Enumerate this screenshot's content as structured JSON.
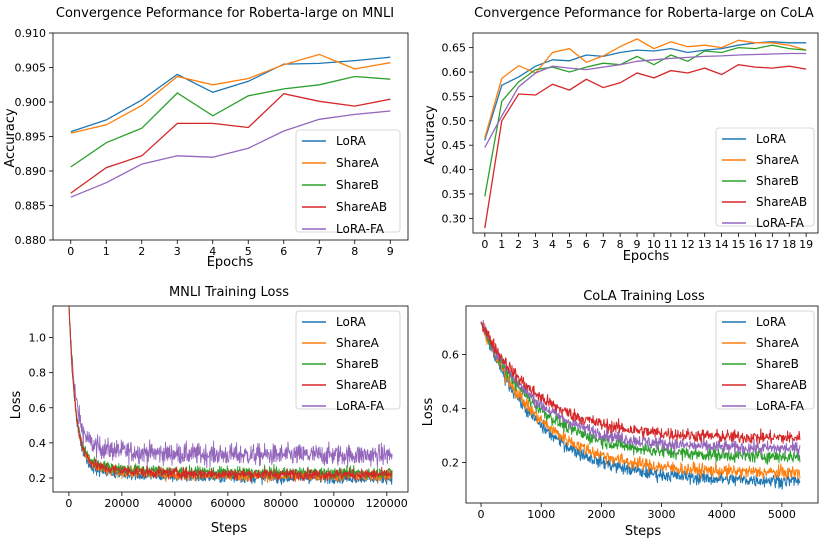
{
  "series_colors": {
    "LoRA": "#1f77b4",
    "ShareA": "#ff7f0e",
    "ShareB": "#2ca02c",
    "ShareAB": "#d62728",
    "LoRA-FA": "#9467bd"
  },
  "chart_data": [
    {
      "type": "line",
      "title": "Convergence Peformance for Roberta-large on MNLI",
      "xlabel": "Epochs",
      "ylabel": "Accuracy",
      "xlim": [
        -0.5,
        9.5
      ],
      "ylim": [
        0.88,
        0.91
      ],
      "xticks": [
        "0",
        "1",
        "2",
        "3",
        "4",
        "5",
        "6",
        "7",
        "8",
        "9"
      ],
      "yticks": [
        "0.880",
        "0.885",
        "0.890",
        "0.895",
        "0.900",
        "0.905",
        "0.910"
      ],
      "legend_position": "lower-right",
      "x": [
        0,
        1,
        2,
        3,
        4,
        5,
        6,
        7,
        8,
        9
      ],
      "series": [
        {
          "name": "LoRA",
          "values": [
            0.8957,
            0.8974,
            0.9003,
            0.904,
            0.9014,
            0.903,
            0.9055,
            0.9056,
            0.906,
            0.9065
          ]
        },
        {
          "name": "ShareA",
          "values": [
            0.8955,
            0.8967,
            0.8995,
            0.9037,
            0.9025,
            0.9034,
            0.9054,
            0.9069,
            0.9048,
            0.9057
          ]
        },
        {
          "name": "ShareB",
          "values": [
            0.8906,
            0.8941,
            0.8962,
            0.9013,
            0.898,
            0.9009,
            0.9019,
            0.9025,
            0.9037,
            0.9033
          ]
        },
        {
          "name": "ShareAB",
          "values": [
            0.8868,
            0.8905,
            0.8922,
            0.8969,
            0.8969,
            0.8963,
            0.9012,
            0.9001,
            0.8994,
            0.9004
          ]
        },
        {
          "name": "LoRA-FA",
          "values": [
            0.8862,
            0.8883,
            0.891,
            0.8922,
            0.892,
            0.8933,
            0.8958,
            0.8975,
            0.8982,
            0.8987
          ]
        }
      ]
    },
    {
      "type": "line",
      "title": "Convergence Peformance for Roberta-large on CoLA",
      "xlabel": "Epochs",
      "ylabel": "Accuracy",
      "xlim": [
        -0.7,
        19.7
      ],
      "ylim": [
        0.27,
        0.68
      ],
      "xticks": [
        "0",
        "1",
        "2",
        "3",
        "4",
        "5",
        "6",
        "7",
        "8",
        "9",
        "10",
        "11",
        "12",
        "13",
        "14",
        "15",
        "16",
        "17",
        "18",
        "19"
      ],
      "yticks": [
        "0.30",
        "0.35",
        "0.40",
        "0.45",
        "0.50",
        "0.55",
        "0.60",
        "0.65"
      ],
      "legend_position": "lower-right",
      "x": [
        0,
        1,
        2,
        3,
        4,
        5,
        6,
        7,
        8,
        9,
        10,
        11,
        12,
        13,
        14,
        15,
        16,
        17,
        18,
        19
      ],
      "series": [
        {
          "name": "LoRA",
          "values": [
            0.46,
            0.573,
            0.59,
            0.612,
            0.625,
            0.623,
            0.635,
            0.632,
            0.64,
            0.645,
            0.643,
            0.648,
            0.64,
            0.645,
            0.648,
            0.655,
            0.66,
            0.662,
            0.66,
            0.66
          ]
        },
        {
          "name": "ShareA",
          "values": [
            0.465,
            0.587,
            0.613,
            0.598,
            0.64,
            0.648,
            0.62,
            0.633,
            0.652,
            0.668,
            0.648,
            0.662,
            0.652,
            0.655,
            0.65,
            0.665,
            0.66,
            0.66,
            0.655,
            0.645
          ]
        },
        {
          "name": "ShareB",
          "values": [
            0.345,
            0.54,
            0.58,
            0.605,
            0.61,
            0.6,
            0.61,
            0.618,
            0.615,
            0.632,
            0.615,
            0.635,
            0.622,
            0.643,
            0.64,
            0.65,
            0.648,
            0.655,
            0.648,
            0.645
          ]
        },
        {
          "name": "ShareAB",
          "values": [
            0.28,
            0.5,
            0.555,
            0.553,
            0.575,
            0.563,
            0.585,
            0.568,
            0.578,
            0.598,
            0.588,
            0.603,
            0.598,
            0.608,
            0.595,
            0.615,
            0.61,
            0.608,
            0.612,
            0.606
          ]
        },
        {
          "name": "LoRA-FA",
          "values": [
            0.445,
            0.51,
            0.57,
            0.598,
            0.612,
            0.608,
            0.605,
            0.61,
            0.615,
            0.622,
            0.625,
            0.628,
            0.63,
            0.632,
            0.633,
            0.635,
            0.636,
            0.637,
            0.638,
            0.638
          ]
        }
      ]
    },
    {
      "type": "line",
      "title": "MNLI Training Loss",
      "xlabel": "Steps",
      "ylabel": "Loss",
      "xlim": [
        -6000,
        128000
      ],
      "ylim": [
        0.12,
        1.18
      ],
      "xticks": [
        "0",
        "20000",
        "40000",
        "60000",
        "80000",
        "100000",
        "120000"
      ],
      "yticks": [
        "0.2",
        "0.4",
        "0.6",
        "0.8",
        "1.0"
      ],
      "legend_position": "upper-right",
      "noisy": true,
      "x_end": 122000,
      "series": [
        {
          "name": "LoRA",
          "start": 1.12,
          "floor": 0.2,
          "noise": 0.05
        },
        {
          "name": "ShareA",
          "start": 1.12,
          "floor": 0.21,
          "noise": 0.05
        },
        {
          "name": "ShareB",
          "start": 1.12,
          "floor": 0.23,
          "noise": 0.05
        },
        {
          "name": "ShareAB",
          "start": 1.12,
          "floor": 0.22,
          "noise": 0.05
        },
        {
          "name": "LoRA-FA",
          "start": 1.12,
          "floor": 0.33,
          "noise": 0.1
        }
      ]
    },
    {
      "type": "line",
      "title": "CoLA Training Loss",
      "xlabel": "Steps",
      "ylabel": "Loss",
      "xlim": [
        -250,
        5600
      ],
      "ylim": [
        0.05,
        0.78
      ],
      "xticks": [
        "0",
        "1000",
        "2000",
        "3000",
        "4000",
        "5000"
      ],
      "yticks": [
        "0.2",
        "0.4",
        "0.6"
      ],
      "legend_position": "upper-right",
      "noisy": true,
      "x_end": 5300,
      "series": [
        {
          "name": "LoRA",
          "start": 0.72,
          "floor": 0.13,
          "noise": 0.04
        },
        {
          "name": "ShareA",
          "start": 0.72,
          "floor": 0.16,
          "noise": 0.04
        },
        {
          "name": "ShareB",
          "start": 0.72,
          "floor": 0.22,
          "noise": 0.04
        },
        {
          "name": "ShareAB",
          "start": 0.72,
          "floor": 0.29,
          "noise": 0.04
        },
        {
          "name": "LoRA-FA",
          "start": 0.72,
          "floor": 0.25,
          "noise": 0.04
        }
      ]
    }
  ]
}
